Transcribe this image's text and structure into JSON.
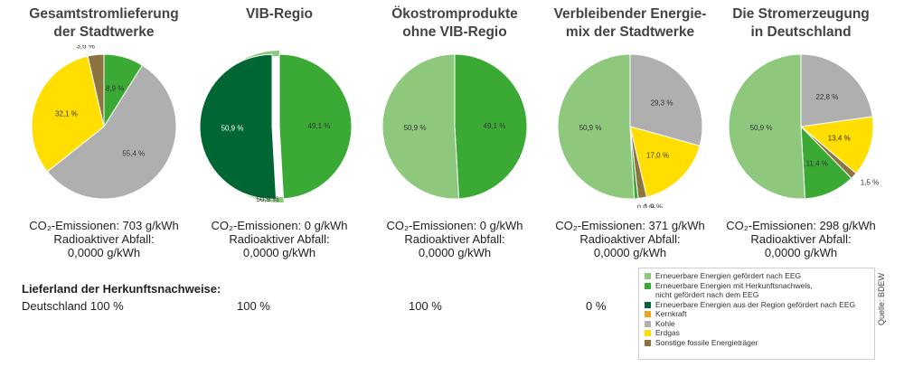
{
  "chart_data": [
    {
      "type": "pie",
      "title": [
        "Gesamtstromlieferung",
        "der Stadtwerke"
      ],
      "slices": [
        {
          "name": "Erneuerbare Energien mit Herkunftsnachweis, nicht gefördert nach dem EEG",
          "value": 8.9,
          "label": "8,9 %",
          "color": "#3aaa35"
        },
        {
          "name": "Kohle",
          "value": 55.4,
          "label": "55,4 %",
          "color": "#afafaf"
        },
        {
          "name": "Erdgas",
          "value": 32.1,
          "label": "32,1 %",
          "color": "#ffde00"
        },
        {
          "name": "Sonstige fossile Energieträger",
          "value": 3.6,
          "label": "3,6 %",
          "color": "#8c7440"
        }
      ],
      "co2": "CO₂-Emissionen: 703 g/kWh",
      "waste_label": "Radioaktiver Abfall:",
      "waste_value": "0,0000 g/kWh",
      "origin": "Deutschland 100 %"
    },
    {
      "type": "pie",
      "title": [
        "VIB-Regio"
      ],
      "slices": [
        {
          "name": "Erneuerbare Energien mit Herkunftsnachweis, nicht gefördert nach dem EEG",
          "value": 49.1,
          "label": "49,1 %",
          "color": "#3aaa35"
        },
        {
          "name": "Erneuerbare Energien aus der Region gefördert nach EEG",
          "value": 50.9,
          "label": "50,9 %",
          "color": "#006633",
          "explode": true
        },
        {
          "name": "Erneuerbare Energien gefördert nach EEG",
          "value": 50.9,
          "label": "50,9 %",
          "color": "#8dc87d",
          "outer_ring": true
        }
      ],
      "co2": "CO₂-Emissionen: 0 g/kWh",
      "waste_label": "Radioaktiver Abfall:",
      "waste_value": "0,0000 g/kWh",
      "origin": "100 %"
    },
    {
      "type": "pie",
      "title": [
        "Ökostromprodukte",
        "ohne VIB-Regio"
      ],
      "slices": [
        {
          "name": "Erneuerbare Energien mit Herkunftsnachweis, nicht gefördert nach dem EEG",
          "value": 49.1,
          "label": "49,1 %",
          "color": "#3aaa35"
        },
        {
          "name": "Erneuerbare Energien gefördert nach EEG",
          "value": 50.9,
          "label": "50,9 %",
          "color": "#8dc87d"
        }
      ],
      "co2": "CO₂-Emissionen: 0 g/kWh",
      "waste_label": "Radioaktiver Abfall:",
      "waste_value": "0,0000 g/kWh",
      "origin": "100 %"
    },
    {
      "type": "pie",
      "title": [
        "Verbleibender Energie-",
        "mix der Stadtwerke"
      ],
      "slices": [
        {
          "name": "Kohle",
          "value": 29.3,
          "label": "29,3 %",
          "color": "#afafaf"
        },
        {
          "name": "Erdgas",
          "value": 17.0,
          "label": "17,0 %",
          "color": "#ffde00"
        },
        {
          "name": "Sonstige fossile Energieträger",
          "value": 1.9,
          "label": "1,9 %",
          "color": "#8c7440"
        },
        {
          "name": "Erneuerbare Energien mit Herkunftsnachweis, nicht gefördert nach dem EEG",
          "value": 0.9,
          "label": "0,9 %",
          "color": "#3aaa35"
        },
        {
          "name": "Erneuerbare Energien gefördert nach EEG",
          "value": 50.9,
          "label": "50,9 %",
          "color": "#8dc87d"
        }
      ],
      "co2": "CO₂-Emissionen: 371 g/kWh",
      "waste_label": "Radioaktiver Abfall:",
      "waste_value": "0,0000 g/kWh",
      "origin": "0 %"
    },
    {
      "type": "pie",
      "title": [
        "Die Stromerzeugung",
        "in Deutschland"
      ],
      "slices": [
        {
          "name": "Kohle",
          "value": 22.8,
          "label": "22,8 %",
          "color": "#afafaf"
        },
        {
          "name": "Erdgas",
          "value": 13.4,
          "label": "13,4 %",
          "color": "#ffde00"
        },
        {
          "name": "Sonstige fossile Energieträger",
          "value": 1.5,
          "label": "1,5 %",
          "color": "#8c7440"
        },
        {
          "name": "Erneuerbare Energien mit Herkunftsnachweis, nicht gefördert nach dem EEG",
          "value": 11.4,
          "label": "11,4 %",
          "color": "#3aaa35"
        },
        {
          "name": "Erneuerbare Energien gefördert nach EEG",
          "value": 50.9,
          "label": "50,9 %",
          "color": "#8dc87d"
        }
      ],
      "co2": "CO₂-Emissionen: 298 g/kWh",
      "waste_label": "Radioaktiver Abfall:",
      "waste_value": "0,0000 g/kWh",
      "origin": ""
    }
  ],
  "origin_title": "Lieferland der Herkunftsnachweise:",
  "legend": [
    {
      "lines": [
        "Erneuerbare Energien gefördert nach EEG"
      ],
      "color": "#8dc87d"
    },
    {
      "lines": [
        "Erneuerbare Energien mit Herkunftsnachweis,",
        "nicht gefördert nach dem EEG"
      ],
      "color": "#3aaa35"
    },
    {
      "lines": [
        "Erneuerbare Energien aus der Region gefördert nach EEG"
      ],
      "color": "#006633"
    },
    {
      "lines": [
        "Kernkraft"
      ],
      "color": "#e8a623"
    },
    {
      "lines": [
        "Kohle"
      ],
      "color": "#afafaf"
    },
    {
      "lines": [
        "Erdgas"
      ],
      "color": "#ffde00"
    },
    {
      "lines": [
        "Sonstige fossile Energieträger"
      ],
      "color": "#8c7440"
    }
  ],
  "source": "Quelle: BDEW"
}
